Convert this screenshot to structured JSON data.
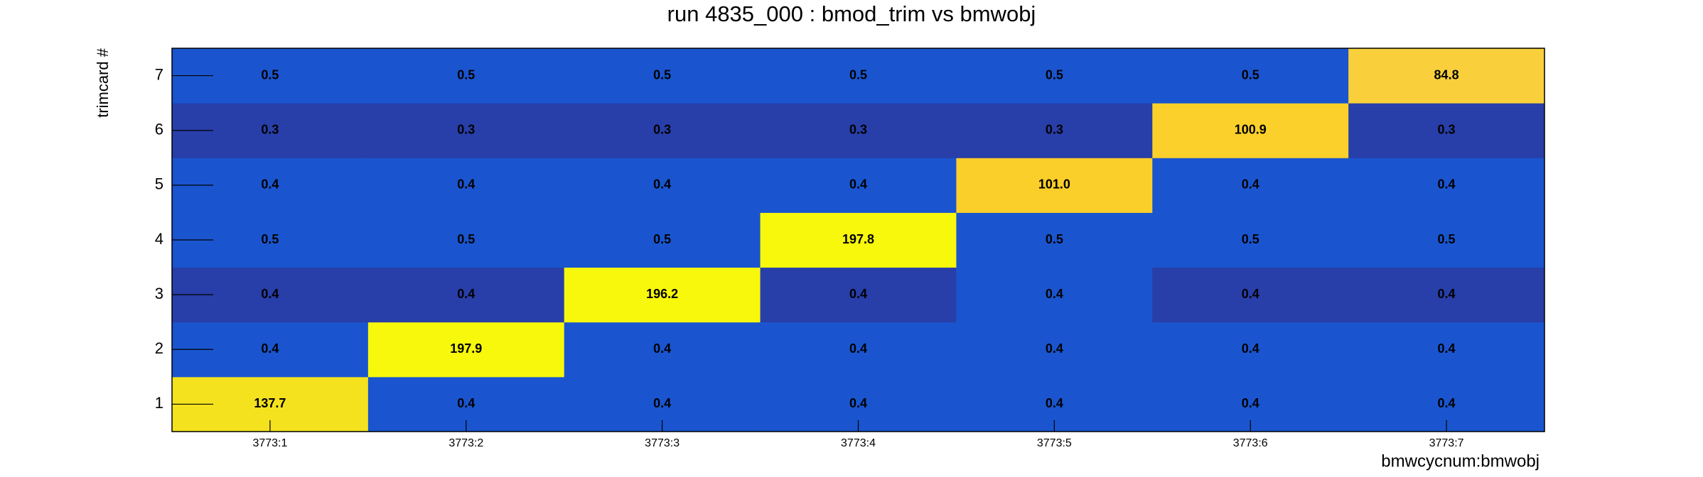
{
  "chart_data": {
    "type": "heatmap",
    "title": "run 4835_000 : bmod_trim vs bmwobj",
    "x_label": "bmwcycnum:bmwobj",
    "y_label": "trimcard #",
    "x_categories": [
      "3773:1",
      "3773:2",
      "3773:3",
      "3773:4",
      "3773:5",
      "3773:6",
      "3773:7"
    ],
    "y_categories": [
      "1",
      "2",
      "3",
      "4",
      "5",
      "6",
      "7"
    ],
    "z": [
      [
        137.7,
        0.4,
        0.4,
        0.4,
        0.4,
        0.4,
        0.4
      ],
      [
        0.4,
        197.9,
        0.4,
        0.4,
        0.4,
        0.4,
        0.4
      ],
      [
        0.4,
        0.4,
        196.2,
        0.4,
        0.4,
        0.4,
        0.4
      ],
      [
        0.5,
        0.5,
        0.5,
        197.8,
        0.5,
        0.5,
        0.5
      ],
      [
        0.4,
        0.4,
        0.4,
        0.4,
        101.0,
        0.4,
        0.4
      ],
      [
        0.3,
        0.3,
        0.3,
        0.3,
        0.3,
        100.9,
        0.3
      ],
      [
        0.5,
        0.5,
        0.5,
        0.5,
        0.5,
        0.5,
        84.8
      ]
    ],
    "value_labels": [
      [
        "137.7",
        "0.4",
        "0.4",
        "0.4",
        "0.4",
        "0.4",
        "0.4"
      ],
      [
        "0.4",
        "197.9",
        "0.4",
        "0.4",
        "0.4",
        "0.4",
        "0.4"
      ],
      [
        "0.4",
        "0.4",
        "196.2",
        "0.4",
        "0.4",
        "0.4",
        "0.4"
      ],
      [
        "0.5",
        "0.5",
        "0.5",
        "197.8",
        "0.5",
        "0.5",
        "0.5"
      ],
      [
        "0.4",
        "0.4",
        "0.4",
        "0.4",
        "101.0",
        "0.4",
        "0.4"
      ],
      [
        "0.3",
        "0.3",
        "0.3",
        "0.3",
        "0.3",
        "100.9",
        "0.3"
      ],
      [
        "0.5",
        "0.5",
        "0.5",
        "0.5",
        "0.5",
        "0.5",
        "84.8"
      ]
    ],
    "colors": [
      [
        "#f5e21e",
        "#1a55cf",
        "#1a55cf",
        "#1a55cf",
        "#1a55cf",
        "#1a55cf",
        "#1a55cf"
      ],
      [
        "#1a55cf",
        "#f8f80c",
        "#1a55cf",
        "#1a55cf",
        "#1a55cf",
        "#1a55cf",
        "#1a55cf"
      ],
      [
        "#283ea8",
        "#283ea8",
        "#f8f80c",
        "#283ea8",
        "#1a55cf",
        "#283ea8",
        "#283ea8"
      ],
      [
        "#1a55cf",
        "#1a55cf",
        "#1a55cf",
        "#f8f80c",
        "#1a55cf",
        "#1a55cf",
        "#1a55cf"
      ],
      [
        "#1a55cf",
        "#1a55cf",
        "#1a55cf",
        "#1a55cf",
        "#fbcf2a",
        "#1a55cf",
        "#1a55cf"
      ],
      [
        "#283ea8",
        "#283ea8",
        "#283ea8",
        "#283ea8",
        "#283ea8",
        "#fbd02a",
        "#283ea8"
      ],
      [
        "#1a55cf",
        "#1a55cf",
        "#1a55cf",
        "#1a55cf",
        "#1a55cf",
        "#1a55cf",
        "#f9d03c"
      ]
    ]
  }
}
